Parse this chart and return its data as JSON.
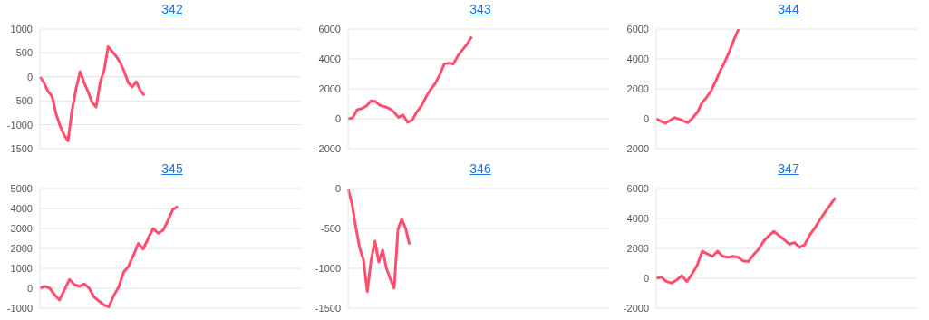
{
  "chart_data": [
    {
      "type": "line",
      "title": "342",
      "categories": [
        null,
        null,
        null,
        null,
        null,
        null,
        null,
        null,
        null,
        null,
        null,
        null,
        null,
        null,
        null,
        null,
        null,
        null,
        null,
        null,
        null,
        null,
        null,
        null,
        null,
        null,
        null,
        null,
        null,
        null,
        null,
        null,
        null,
        null,
        null,
        null,
        null,
        null,
        null,
        null,
        null,
        null,
        null,
        null,
        null,
        null,
        null,
        null,
        null,
        null,
        null,
        null,
        null,
        null,
        null,
        null,
        null,
        null,
        null,
        null,
        null,
        null,
        null,
        null,
        null,
        null
      ],
      "series": [
        {
          "color": "#ff4d6d",
          "values": [
            0,
            -120,
            -300,
            -400,
            -760,
            -1020,
            -1210,
            -1340,
            -700,
            -250,
            110,
            -120,
            -310,
            -530,
            -630,
            -120,
            140,
            630,
            530,
            430,
            300,
            110,
            -120,
            -210,
            -100,
            -280,
            -390,
            null,
            null,
            null,
            null,
            null,
            null,
            null,
            null,
            null,
            null,
            null,
            null,
            null,
            null,
            null,
            null,
            null,
            null,
            null,
            null,
            null,
            null,
            null,
            null,
            null,
            null,
            null,
            null,
            null,
            null,
            null,
            null,
            null,
            null,
            null,
            null,
            null,
            null,
            null
          ]
        }
      ],
      "ylim": [
        -1500,
        1000
      ],
      "yticks": [
        -1500,
        -1000,
        -500,
        0,
        500,
        1000
      ],
      "grid": "y",
      "tick_labels": "y"
    },
    {
      "type": "line",
      "title": "343",
      "categories": [
        null,
        null,
        null,
        null,
        null,
        null,
        null,
        null,
        null,
        null,
        null,
        null,
        null,
        null,
        null,
        null,
        null,
        null,
        null,
        null,
        null,
        null,
        null,
        null,
        null,
        null,
        null,
        null,
        null,
        null,
        null,
        null,
        null,
        null,
        null,
        null,
        null,
        null,
        null,
        null,
        null,
        null,
        null,
        null,
        null,
        null,
        null,
        null,
        null,
        null,
        null,
        null,
        null,
        null,
        null,
        null,
        null,
        null
      ],
      "series": [
        {
          "color": "#ff4d6d",
          "values": [
            0,
            60,
            610,
            690,
            850,
            1200,
            1150,
            890,
            810,
            690,
            460,
            100,
            260,
            -240,
            -100,
            460,
            850,
            1450,
            1940,
            2340,
            2930,
            3660,
            3720,
            3660,
            4220,
            4610,
            5000,
            5490,
            null,
            null,
            null,
            null,
            null,
            null,
            null,
            null,
            null,
            null,
            null,
            null,
            null,
            null,
            null,
            null,
            null,
            null,
            null,
            null,
            null,
            null,
            null,
            null,
            null,
            null,
            null,
            null,
            null,
            null
          ]
        }
      ],
      "ylim": [
        -2000,
        6000
      ],
      "yticks": [
        -2000,
        0,
        2000,
        4000,
        6000
      ],
      "grid": "y",
      "tick_labels": "y"
    },
    {
      "type": "line",
      "title": "344",
      "categories": [
        null,
        null,
        null,
        null,
        null,
        null,
        null,
        null,
        null,
        null,
        null,
        null,
        null,
        null,
        null,
        null,
        null,
        null,
        null,
        null,
        null,
        null,
        null,
        null,
        null,
        null,
        null,
        null,
        null,
        null,
        null,
        null,
        null,
        null,
        null,
        null,
        null,
        null,
        null,
        null,
        null,
        null,
        null,
        null,
        null,
        null,
        null,
        null,
        null,
        null,
        null,
        null,
        null,
        null,
        null,
        null,
        null,
        null
      ],
      "series": [
        {
          "color": "#ff4d6d",
          "values": [
            0,
            -160,
            -300,
            -120,
            80,
            -20,
            -160,
            -260,
            80,
            440,
            1070,
            1430,
            1870,
            2520,
            3220,
            3820,
            4510,
            5310,
            6000,
            null,
            null,
            null,
            null,
            null,
            null,
            null,
            null,
            null,
            null,
            null,
            null,
            null,
            null,
            null,
            null,
            null,
            null,
            null,
            null,
            null,
            null,
            null,
            null,
            null,
            null,
            null,
            null,
            null,
            null,
            null,
            null,
            null,
            null,
            null,
            null,
            null,
            null,
            null
          ]
        }
      ],
      "ylim": [
        -2000,
        6000
      ],
      "yticks": [
        -2000,
        0,
        2000,
        4000,
        6000
      ],
      "grid": "y",
      "tick_labels": "y"
    },
    {
      "type": "line",
      "title": "345",
      "categories": [
        null,
        null,
        null,
        null,
        null,
        null,
        null,
        null,
        null,
        null,
        null,
        null,
        null,
        null,
        null,
        null,
        null,
        null,
        null,
        null,
        null,
        null,
        null,
        null,
        null,
        null,
        null,
        null,
        null,
        null,
        null,
        null,
        null,
        null,
        null,
        null,
        null,
        null,
        null,
        null,
        null,
        null,
        null,
        null,
        null,
        null,
        null,
        null,
        null,
        null,
        null,
        null,
        null,
        null
      ],
      "series": [
        {
          "color": "#ff4d6d",
          "values": [
            0,
            100,
            0,
            -330,
            -590,
            -70,
            440,
            180,
            100,
            220,
            0,
            -440,
            -640,
            -840,
            -930,
            -370,
            70,
            810,
            1110,
            1660,
            2250,
            1970,
            2520,
            3000,
            2760,
            2910,
            3400,
            3950,
            4100,
            null,
            null,
            null,
            null,
            null,
            null,
            null,
            null,
            null,
            null,
            null,
            null,
            null,
            null,
            null,
            null,
            null,
            null,
            null,
            null,
            null,
            null,
            null,
            null,
            null
          ]
        }
      ],
      "ylim": [
        -1000,
        5000
      ],
      "yticks": [
        -1000,
        0,
        1000,
        2000,
        3000,
        4000,
        5000
      ],
      "grid": "y",
      "tick_labels": "y"
    },
    {
      "type": "line",
      "title": "346",
      "categories": [
        null,
        null,
        null,
        null,
        null,
        null,
        null,
        null,
        null,
        null,
        null,
        null,
        null,
        null,
        null,
        null,
        null,
        null,
        null,
        null,
        null,
        null,
        null,
        null,
        null,
        null,
        null,
        null,
        null,
        null,
        null,
        null,
        null,
        null,
        null,
        null,
        null,
        null,
        null,
        null,
        null,
        null,
        null,
        null,
        null,
        null,
        null,
        null,
        null,
        null,
        null,
        null,
        null,
        null,
        null,
        null,
        null,
        null,
        null,
        null,
        null,
        null,
        null,
        null,
        null,
        null,
        null,
        null,
        null
      ],
      "series": [
        {
          "color": "#ff4d6d",
          "values": [
            0,
            -185,
            -480,
            -740,
            -890,
            -1290,
            -900,
            -660,
            -920,
            -770,
            -1000,
            -1130,
            -1250,
            -510,
            -380,
            -500,
            -700,
            null,
            null,
            null,
            null,
            null,
            null,
            null,
            null,
            null,
            null,
            null,
            null,
            null,
            null,
            null,
            null,
            null,
            null,
            null,
            null,
            null,
            null,
            null,
            null,
            null,
            null,
            null,
            null,
            null,
            null,
            null,
            null,
            null,
            null,
            null,
            null,
            null,
            null,
            null,
            null,
            null,
            null,
            null,
            null,
            null,
            null,
            null,
            null,
            null,
            null,
            null,
            null
          ]
        }
      ],
      "ylim": [
        -1500,
        0
      ],
      "yticks": [
        -1500,
        -1000,
        -500,
        0
      ],
      "grid": "y",
      "tick_labels": "y"
    },
    {
      "type": "line",
      "title": "347",
      "categories": [
        null,
        null,
        null,
        null,
        null,
        null,
        null,
        null,
        null,
        null,
        null,
        null,
        null,
        null,
        null,
        null,
        null,
        null,
        null,
        null,
        null,
        null,
        null,
        null,
        null,
        null,
        null,
        null,
        null,
        null,
        null,
        null,
        null,
        null,
        null,
        null,
        null,
        null,
        null,
        null,
        null,
        null,
        null,
        null,
        null,
        null,
        null,
        null,
        null,
        null,
        null,
        null
      ],
      "series": [
        {
          "color": "#ff4d6d",
          "values": [
            0,
            80,
            -220,
            -310,
            -120,
            180,
            -220,
            290,
            860,
            1820,
            1630,
            1470,
            1820,
            1470,
            1410,
            1470,
            1410,
            1160,
            1120,
            1570,
            1940,
            2490,
            2840,
            3140,
            2860,
            2590,
            2290,
            2390,
            2080,
            2240,
            2900,
            3370,
            3920,
            4430,
            4900,
            5390,
            null,
            null,
            null,
            null,
            null,
            null,
            null,
            null,
            null,
            null,
            null,
            null,
            null,
            null,
            null,
            null
          ]
        }
      ],
      "ylim": [
        -2000,
        6000
      ],
      "yticks": [
        -2000,
        0,
        2000,
        4000,
        6000
      ],
      "grid": "y",
      "tick_labels": "y"
    }
  ]
}
